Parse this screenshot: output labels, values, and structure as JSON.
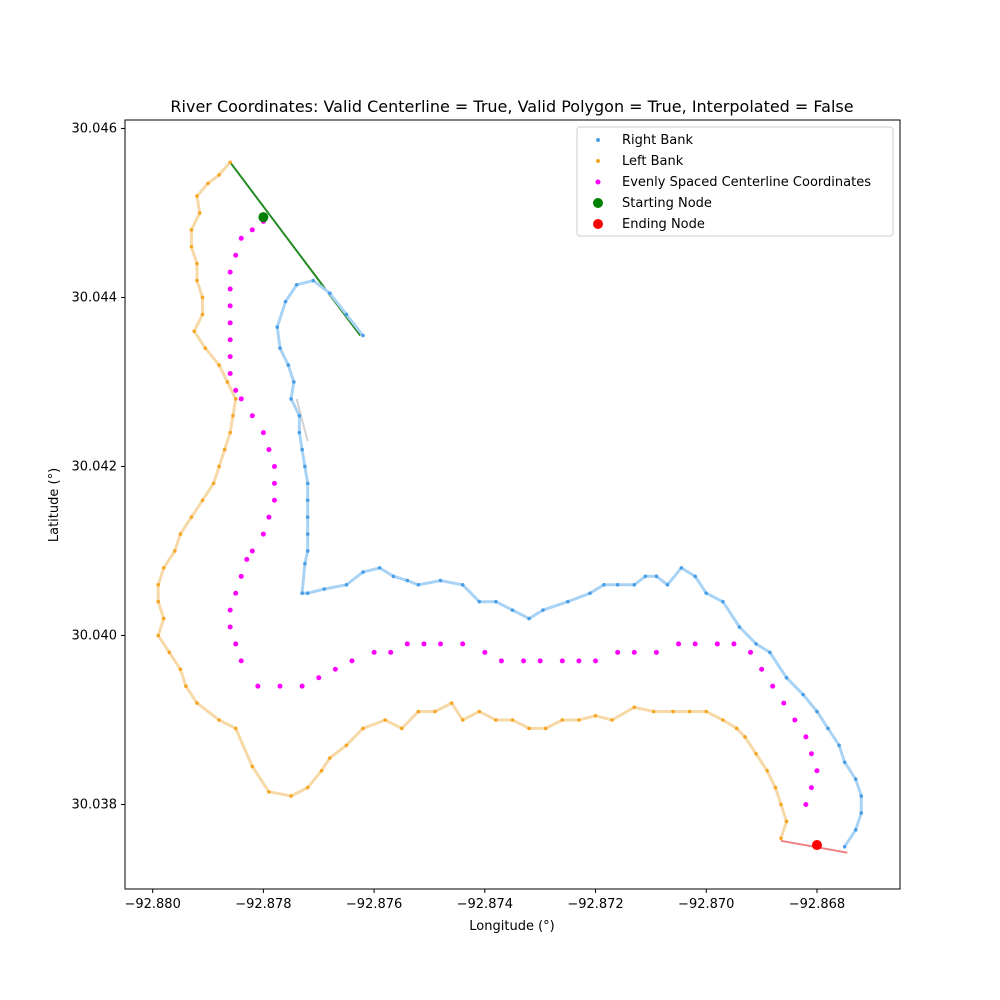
{
  "chart_data": {
    "type": "scatter",
    "title": "River Coordinates: Valid Centerline = True, Valid Polygon = True, Interpolated = False",
    "xlabel": "Longitude (°)",
    "ylabel": "Latitude (°)",
    "xlim": [
      -92.8805,
      -92.8665
    ],
    "ylim": [
      30.037,
      30.0461
    ],
    "xticks": [
      -92.88,
      -92.878,
      -92.876,
      -92.874,
      -92.872,
      -92.87,
      -92.868
    ],
    "xtick_labels": [
      "−92.880",
      "−92.878",
      "−92.876",
      "−92.874",
      "−92.872",
      "−92.870",
      "−92.868"
    ],
    "yticks": [
      30.038,
      30.04,
      30.042,
      30.044,
      30.046
    ],
    "ytick_labels": [
      "30.038",
      "30.040",
      "30.042",
      "30.044",
      "30.046"
    ],
    "grid": false,
    "legend_placement": "top-right",
    "colors": {
      "right_bank": "#4a9ee6",
      "right_bank_fill": "#a9d3f5",
      "left_bank": "#f5a623",
      "left_bank_fill": "#f7d9a8",
      "centerline": "#ff00ff",
      "start": "#008000",
      "end": "#ff0000",
      "top_line": "#228b22",
      "bottom_line": "#f08080",
      "gap_line": "#d3d3d3"
    },
    "series": [
      {
        "name": "Right Bank",
        "x": [
          -92.8762,
          -92.8765,
          -92.8768,
          -92.8771,
          -92.8774,
          -92.8776,
          -92.87775,
          -92.8777,
          -92.87755,
          -92.87745,
          -92.8775,
          -92.87735,
          -92.87735,
          -92.8773,
          -92.87725,
          -92.8772,
          -92.8772,
          -92.8772,
          -92.8772,
          -92.8772,
          -92.87725,
          -92.8773,
          -92.8772,
          -92.8769,
          -92.8765,
          -92.8762,
          -92.8759,
          -92.87565,
          -92.8754,
          -92.8752,
          -92.8748,
          -92.8744,
          -92.8741,
          -92.8738,
          -92.8735,
          -92.8732,
          -92.87295,
          -92.8725,
          -92.8721,
          -92.87185,
          -92.8716,
          -92.8713,
          -92.8711,
          -92.8709,
          -92.8707,
          -92.87045,
          -92.8702,
          -92.87,
          -92.8697,
          -92.8694,
          -92.8691,
          -92.86885,
          -92.86855,
          -92.86825,
          -92.868,
          -92.8678,
          -92.8676,
          -92.8675,
          -92.8673,
          -92.8672,
          -92.8672,
          -92.8673,
          -92.8675
        ],
        "y": [
          30.04355,
          30.0438,
          30.04405,
          30.0442,
          30.04415,
          30.04395,
          30.04365,
          30.0434,
          30.0432,
          30.043,
          30.0428,
          30.0426,
          30.0424,
          30.0422,
          30.042,
          30.0418,
          30.0416,
          30.0414,
          30.0412,
          30.041,
          30.04085,
          30.0405,
          30.0405,
          30.04055,
          30.0406,
          30.04075,
          30.0408,
          30.0407,
          30.04065,
          30.0406,
          30.04065,
          30.0406,
          30.0404,
          30.0404,
          30.0403,
          30.0402,
          30.0403,
          30.0404,
          30.0405,
          30.0406,
          30.0406,
          30.0406,
          30.0407,
          30.0407,
          30.0406,
          30.0408,
          30.0407,
          30.0405,
          30.0404,
          30.0401,
          30.0399,
          30.0398,
          30.0395,
          30.0393,
          30.0391,
          30.0389,
          30.0387,
          30.0385,
          30.0383,
          30.0381,
          30.0379,
          30.0377,
          30.0375
        ]
      },
      {
        "name": "Left Bank",
        "x": [
          -92.8786,
          -92.8788,
          -92.879,
          -92.8792,
          -92.87915,
          -92.8793,
          -92.8793,
          -92.8792,
          -92.8792,
          -92.8791,
          -92.8791,
          -92.87925,
          -92.87905,
          -92.8788,
          -92.87865,
          -92.8785,
          -92.87855,
          -92.8786,
          -92.8787,
          -92.8788,
          -92.8789,
          -92.8791,
          -92.8793,
          -92.8795,
          -92.8796,
          -92.8798,
          -92.8799,
          -92.8799,
          -92.8798,
          -92.8799,
          -92.8797,
          -92.8795,
          -92.8794,
          -92.8792,
          -92.8788,
          -92.8785,
          -92.8782,
          -92.8779,
          -92.8775,
          -92.8772,
          -92.87695,
          -92.8768,
          -92.8765,
          -92.8762,
          -92.8758,
          -92.8755,
          -92.8752,
          -92.8749,
          -92.8746,
          -92.8744,
          -92.8741,
          -92.8738,
          -92.8735,
          -92.8732,
          -92.8729,
          -92.8726,
          -92.8723,
          -92.872,
          -92.8717,
          -92.8713,
          -92.87095,
          -92.8706,
          -92.8703,
          -92.87,
          -92.8697,
          -92.86945,
          -92.8693,
          -92.8691,
          -92.8689,
          -92.86875,
          -92.86865,
          -92.86855,
          -92.86865
        ],
        "y": [
          30.0456,
          30.04545,
          30.04535,
          30.0452,
          30.045,
          30.0448,
          30.0446,
          30.0444,
          30.0442,
          30.044,
          30.0438,
          30.0436,
          30.0434,
          30.0432,
          30.043,
          30.0428,
          30.0426,
          30.0424,
          30.0422,
          30.042,
          30.0418,
          30.0416,
          30.0414,
          30.0412,
          30.041,
          30.0408,
          30.0406,
          30.0404,
          30.0402,
          30.04,
          30.0398,
          30.0396,
          30.0394,
          30.0392,
          30.039,
          30.0389,
          30.03845,
          30.03815,
          30.0381,
          30.0382,
          30.0384,
          30.03855,
          30.0387,
          30.0389,
          30.039,
          30.0389,
          30.0391,
          30.0391,
          30.0392,
          30.039,
          30.0391,
          30.039,
          30.039,
          30.0389,
          30.0389,
          30.039,
          30.039,
          30.03905,
          30.039,
          30.03915,
          30.0391,
          30.0391,
          30.0391,
          30.0391,
          30.039,
          30.0389,
          30.0388,
          30.0386,
          30.0384,
          30.0382,
          30.038,
          30.0378,
          30.0376
        ]
      },
      {
        "name": "Evenly Spaced Centerline Coordinates",
        "x": [
          -92.878,
          -92.8782,
          -92.8784,
          -92.8785,
          -92.8786,
          -92.8786,
          -92.8786,
          -92.8786,
          -92.8786,
          -92.8786,
          -92.8786,
          -92.8785,
          -92.8784,
          -92.8782,
          -92.878,
          -92.8779,
          -92.8778,
          -92.8778,
          -92.8778,
          -92.8779,
          -92.878,
          -92.8782,
          -92.8783,
          -92.8784,
          -92.8785,
          -92.8786,
          -92.8786,
          -92.8785,
          -92.8784,
          -92.8781,
          -92.8777,
          -92.8773,
          -92.877,
          -92.8767,
          -92.8764,
          -92.876,
          -92.8757,
          -92.8754,
          -92.8751,
          -92.8748,
          -92.8744,
          -92.874,
          -92.8737,
          -92.8733,
          -92.873,
          -92.8726,
          -92.8723,
          -92.872,
          -92.8716,
          -92.8713,
          -92.8709,
          -92.8705,
          -92.8702,
          -92.8698,
          -92.8695,
          -92.8692,
          -92.869,
          -92.8688,
          -92.8686,
          -92.8684,
          -92.8682,
          -92.8681,
          -92.868,
          -92.8681,
          -92.8682
        ],
        "y": [
          30.0449,
          30.0448,
          30.0447,
          30.0445,
          30.0443,
          30.0441,
          30.0439,
          30.0437,
          30.0435,
          30.0433,
          30.0431,
          30.0429,
          30.0428,
          30.0426,
          30.0424,
          30.0422,
          30.042,
          30.0418,
          30.0416,
          30.0414,
          30.0412,
          30.041,
          30.0409,
          30.0407,
          30.0405,
          30.0403,
          30.0401,
          30.0399,
          30.0397,
          30.0394,
          30.0394,
          30.0394,
          30.0395,
          30.0396,
          30.0397,
          30.0398,
          30.0398,
          30.0399,
          30.0399,
          30.0399,
          30.0399,
          30.0398,
          30.0397,
          30.0397,
          30.0397,
          30.0397,
          30.0397,
          30.0397,
          30.0398,
          30.0398,
          30.0398,
          30.0399,
          30.0399,
          30.0399,
          30.0399,
          30.0398,
          30.0396,
          30.0394,
          30.0392,
          30.039,
          30.0388,
          30.0386,
          30.0384,
          30.0382,
          30.038
        ]
      },
      {
        "name": "Starting Node",
        "x": [
          -92.878
        ],
        "y": [
          30.04495
        ]
      },
      {
        "name": "Ending Node",
        "x": [
          -92.868
        ],
        "y": [
          30.03752
        ]
      }
    ],
    "lines": {
      "top": {
        "x": [
          -92.8786,
          -92.87625
        ],
        "y": [
          30.0456,
          30.04355
        ]
      },
      "bottom": {
        "x": [
          -92.86865,
          -92.86745
        ],
        "y": [
          30.03757,
          30.03743
        ]
      },
      "gap": {
        "x": [
          -92.8774,
          -92.8772
        ],
        "y": [
          30.0428,
          30.0423
        ]
      }
    }
  }
}
